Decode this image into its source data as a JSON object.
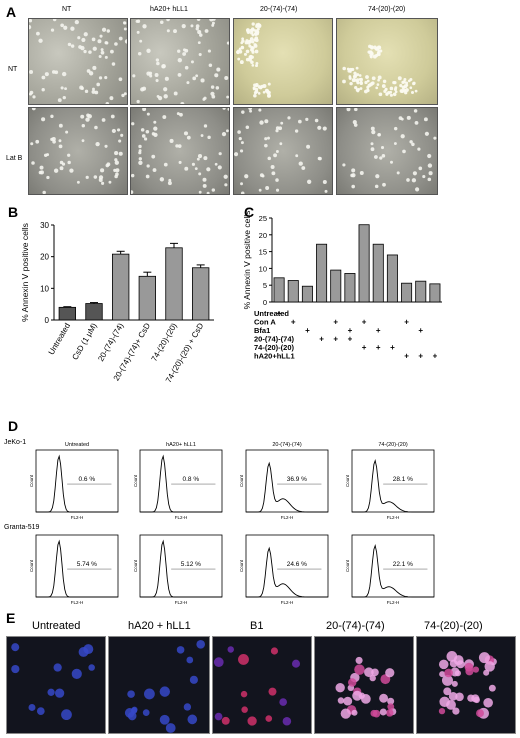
{
  "panel_letters": {
    "a": "A",
    "b": "B",
    "c": "C",
    "d": "D",
    "e": "E"
  },
  "panel_a": {
    "columns": [
      "NT",
      "hA20+ hLL1",
      "20-(74)-(74)",
      "74-(20)-(20)"
    ],
    "rows": [
      "NT",
      "Lat B"
    ]
  },
  "chart_data": [
    {
      "panel": "B",
      "type": "bar",
      "ylabel": "% Annexin V positive cells",
      "ylim": [
        0,
        30
      ],
      "yticks": [
        0,
        10,
        20,
        30
      ],
      "categories": [
        "Untreated",
        "CsD (1 μM)",
        "20-(74)-(74)",
        "20-(74)-(74)+ CsD",
        "74-(20)-(20)",
        "74-(20)-(20) + CsD"
      ],
      "values": [
        4.0,
        5.2,
        20.8,
        13.8,
        22.8,
        16.5
      ],
      "errors": [
        0.2,
        0.3,
        0.9,
        1.3,
        1.4,
        0.9
      ]
    },
    {
      "panel": "C",
      "type": "bar",
      "ylabel": "% Annexin V positive cells",
      "ylim": [
        0,
        25
      ],
      "yticks": [
        0,
        5,
        10,
        15,
        20,
        25
      ],
      "values": [
        7.2,
        6.4,
        4.7,
        17.2,
        9.5,
        8.5,
        23.0,
        17.2,
        14.0,
        5.6,
        6.2,
        5.4
      ],
      "treatment_rows": [
        "Untreated",
        "Con A",
        "Bfa1",
        "20-(74)-(74)",
        "74-(20)-(20)",
        "hA20+hLL1"
      ],
      "treatment_matrix": [
        [
          1,
          0,
          0,
          0,
          0,
          0,
          0,
          0,
          0,
          0,
          0,
          0
        ],
        [
          0,
          1,
          0,
          0,
          1,
          0,
          1,
          0,
          0,
          1,
          0,
          0
        ],
        [
          0,
          0,
          1,
          0,
          0,
          1,
          0,
          1,
          0,
          0,
          1,
          0
        ],
        [
          0,
          0,
          0,
          1,
          1,
          1,
          0,
          0,
          0,
          0,
          0,
          0
        ],
        [
          0,
          0,
          0,
          0,
          0,
          0,
          1,
          1,
          1,
          0,
          0,
          0
        ],
        [
          0,
          0,
          0,
          0,
          0,
          0,
          0,
          0,
          0,
          1,
          1,
          1
        ]
      ],
      "marker": "+"
    },
    {
      "panel": "D",
      "type": "line",
      "row_labels": [
        "JeKo-1",
        "Granta-519"
      ],
      "column_titles": [
        "Untreated",
        "hA20+ hLL1",
        "20-(74)-(74)",
        "74-(20)-(20)"
      ],
      "xlabel": "FL2-H",
      "ylabel": "Count",
      "percentages": [
        [
          "0.6 %",
          "0.8 %",
          "36.9 %",
          "28.1 %"
        ],
        [
          "5.74 %",
          "5.12 %",
          "24.6 %",
          "22.1 %"
        ]
      ]
    }
  ],
  "panel_e": {
    "labels": [
      "Untreated",
      "hA20 + hLL1",
      "B1",
      "20-(74)-(74)",
      "74-(20)-(20)"
    ]
  }
}
